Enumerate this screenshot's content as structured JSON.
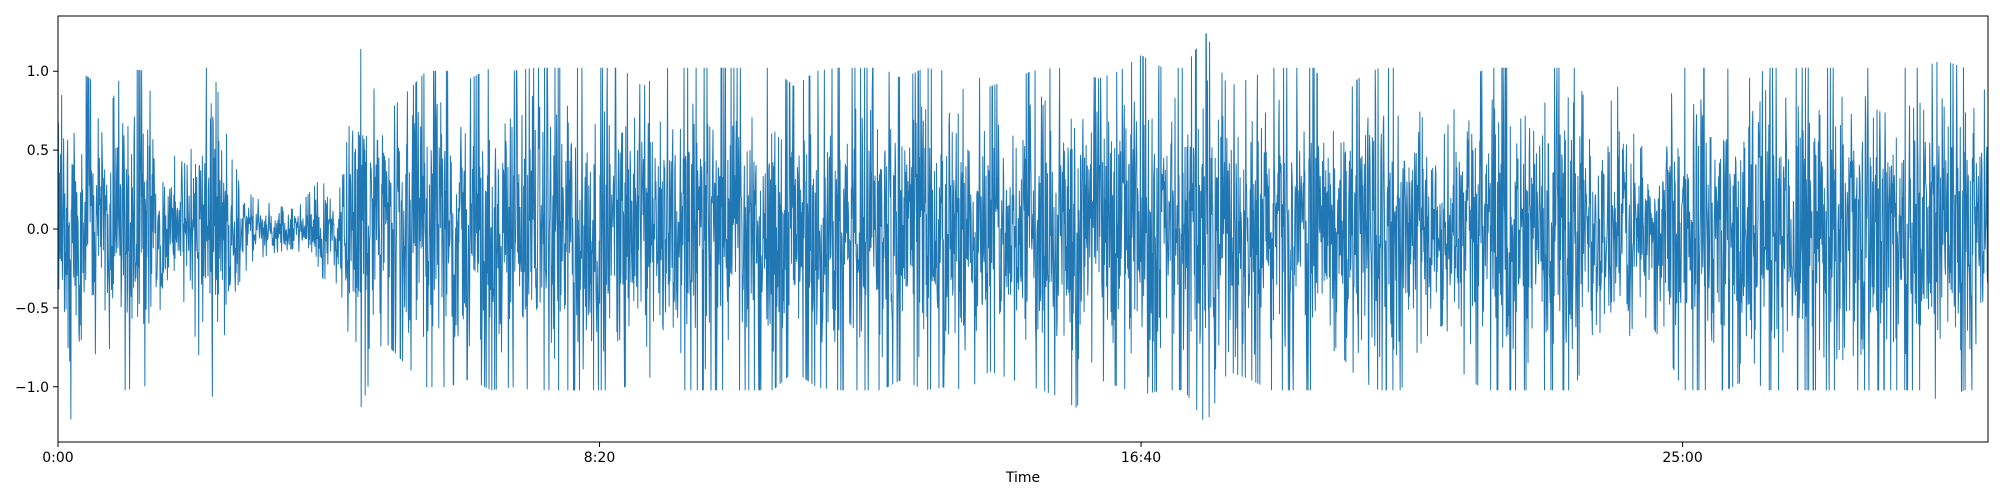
{
  "chart_data": {
    "type": "line",
    "title": "",
    "xlabel": "Time",
    "ylabel": "",
    "color": "#1f77b4",
    "xlim_seconds": [
      0,
      1782
    ],
    "ylim": [
      -1.35,
      1.35
    ],
    "grid": false,
    "x_ticks": [
      {
        "value_seconds": 0,
        "label": "0:00"
      },
      {
        "value_seconds": 500,
        "label": "8:20"
      },
      {
        "value_seconds": 1000,
        "label": "16:40"
      },
      {
        "value_seconds": 1500,
        "label": "25:00"
      }
    ],
    "y_ticks": [
      {
        "value": 1.0,
        "label": "1.0"
      },
      {
        "value": 0.5,
        "label": "0.5"
      },
      {
        "value": 0.0,
        "label": "0.0"
      },
      {
        "value": -0.5,
        "label": "−0.5"
      },
      {
        "value": -1.0,
        "label": "−1.0"
      }
    ],
    "series": [
      {
        "envelope_time_seconds": [
          0,
          10,
          20,
          30,
          40,
          60,
          80,
          100,
          120,
          140,
          160,
          170,
          180,
          200,
          220,
          240,
          260,
          280,
          300,
          320,
          340,
          360,
          380,
          400,
          420,
          440,
          450,
          470,
          490,
          500,
          520,
          540,
          560,
          580,
          600,
          620,
          640,
          660,
          680,
          700,
          720,
          740,
          760,
          780,
          800,
          820,
          840,
          860,
          880,
          900,
          920,
          940,
          960,
          980,
          1000,
          1020,
          1040,
          1060,
          1080,
          1100,
          1120,
          1140,
          1160,
          1180,
          1200,
          1220,
          1240,
          1260,
          1280,
          1300,
          1320,
          1340,
          1360,
          1380,
          1400,
          1420,
          1440,
          1460,
          1480,
          1500,
          1520,
          1540,
          1560,
          1580,
          1600,
          1620,
          1640,
          1660,
          1680,
          1700,
          1720,
          1740,
          1760,
          1782
        ],
        "envelope_max": [
          0.65,
          1.24,
          1.0,
          0.95,
          0.6,
          1.02,
          1.0,
          0.5,
          0.4,
          1.13,
          0.45,
          0.3,
          0.2,
          0.15,
          0.12,
          0.3,
          0.25,
          1.16,
          0.7,
          0.85,
          1.0,
          1.0,
          0.95,
          1.02,
          1.0,
          1.02,
          1.02,
          1.02,
          1.02,
          1.02,
          1.02,
          0.9,
          1.02,
          1.02,
          1.02,
          1.02,
          1.02,
          1.02,
          0.9,
          1.0,
          1.02,
          1.02,
          1.02,
          0.95,
          1.02,
          1.0,
          1.02,
          0.9,
          0.95,
          1.0,
          1.02,
          1.02,
          0.95,
          1.0,
          1.1,
          1.02,
          1.02,
          1.24,
          0.9,
          0.95,
          1.02,
          1.02,
          1.02,
          0.75,
          0.95,
          1.02,
          1.02,
          0.7,
          0.6,
          0.95,
          1.02,
          1.02,
          1.02,
          1.02,
          1.02,
          0.6,
          0.9,
          0.5,
          0.7,
          1.02,
          1.02,
          1.02,
          0.95,
          1.02,
          1.02,
          1.02,
          1.02,
          1.02,
          1.02,
          1.02,
          1.02,
          1.07,
          1.02,
          1.02
        ],
        "envelope_min": [
          -0.65,
          -1.24,
          -1.05,
          -0.95,
          -0.6,
          -1.02,
          -1.0,
          -0.5,
          -0.45,
          -1.15,
          -0.45,
          -0.3,
          -0.2,
          -0.15,
          -0.12,
          -0.3,
          -0.35,
          -1.13,
          -0.7,
          -0.85,
          -1.0,
          -1.0,
          -0.95,
          -1.02,
          -1.0,
          -1.02,
          -1.02,
          -1.02,
          -1.02,
          -1.02,
          -1.02,
          -0.9,
          -1.02,
          -1.02,
          -1.02,
          -1.02,
          -1.02,
          -1.02,
          -0.9,
          -1.0,
          -1.02,
          -1.02,
          -1.02,
          -0.95,
          -1.02,
          -1.0,
          -1.02,
          -0.9,
          -0.95,
          -1.0,
          -1.05,
          -1.13,
          -0.95,
          -1.0,
          -1.05,
          -1.02,
          -1.02,
          -1.24,
          -0.9,
          -0.95,
          -1.02,
          -1.02,
          -1.02,
          -0.75,
          -0.95,
          -1.02,
          -1.02,
          -0.7,
          -0.6,
          -0.95,
          -1.02,
          -1.02,
          -1.02,
          -1.02,
          -1.02,
          -0.6,
          -0.9,
          -0.5,
          -0.7,
          -1.02,
          -1.02,
          -1.02,
          -0.95,
          -1.02,
          -1.02,
          -1.02,
          -1.02,
          -1.02,
          -1.02,
          -1.02,
          -1.02,
          -1.1,
          -1.02,
          -1.02
        ]
      }
    ]
  }
}
